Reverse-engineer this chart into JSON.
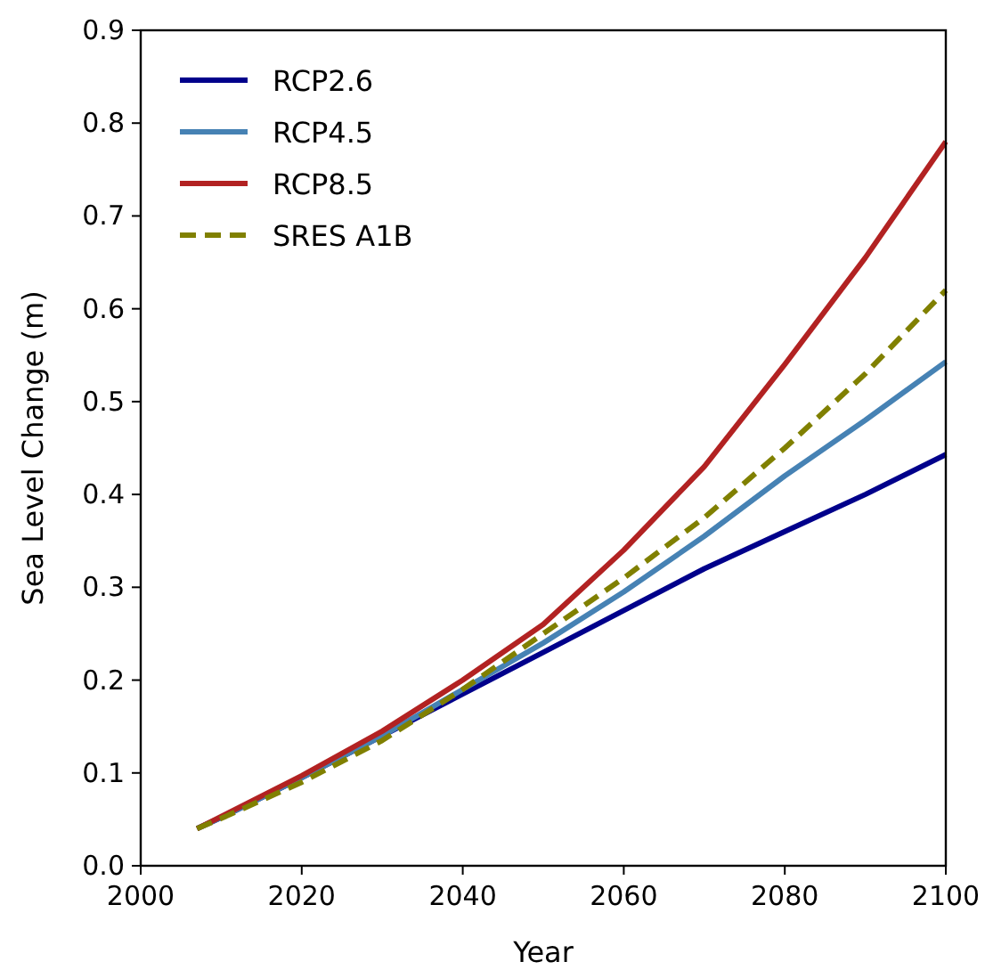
{
  "chart_data": {
    "type": "line",
    "xlabel": "Year",
    "ylabel": "Sea Level Change (m)",
    "x": [
      2007,
      2010,
      2020,
      2030,
      2040,
      2050,
      2060,
      2070,
      2080,
      2090,
      2100
    ],
    "xlim": [
      2000,
      2100
    ],
    "xticks": [
      2000,
      2020,
      2040,
      2060,
      2080,
      2100
    ],
    "ylim": [
      0,
      0.9
    ],
    "yticks": [
      {
        "value": 0,
        "label": "0.0"
      },
      0.1,
      0.2,
      0.3,
      0.4,
      0.5,
      0.6,
      0.7,
      0.8,
      0.9
    ],
    "grid": false,
    "legend": "top left",
    "series": [
      {
        "name": "RCP2.6",
        "color": "#00008b",
        "line_style": "solid",
        "values": [
          0.04,
          0.052,
          0.095,
          0.14,
          0.185,
          0.23,
          0.275,
          0.32,
          0.36,
          0.4,
          0.443
        ]
      },
      {
        "name": "RCP4.5",
        "color": "#4682b4",
        "line_style": "solid",
        "values": [
          0.04,
          0.052,
          0.095,
          0.14,
          0.19,
          0.24,
          0.295,
          0.355,
          0.42,
          0.48,
          0.543
        ]
      },
      {
        "name": "RCP8.5",
        "color": "#b22222",
        "line_style": "solid",
        "values": [
          0.04,
          0.053,
          0.097,
          0.145,
          0.2,
          0.26,
          0.34,
          0.43,
          0.54,
          0.655,
          0.78
        ]
      },
      {
        "name": "SRES A1B",
        "color": "#808000",
        "line_style": "dashed",
        "values": [
          0.04,
          0.051,
          0.09,
          0.135,
          0.19,
          0.25,
          0.31,
          0.375,
          0.45,
          0.53,
          0.62
        ]
      }
    ]
  }
}
